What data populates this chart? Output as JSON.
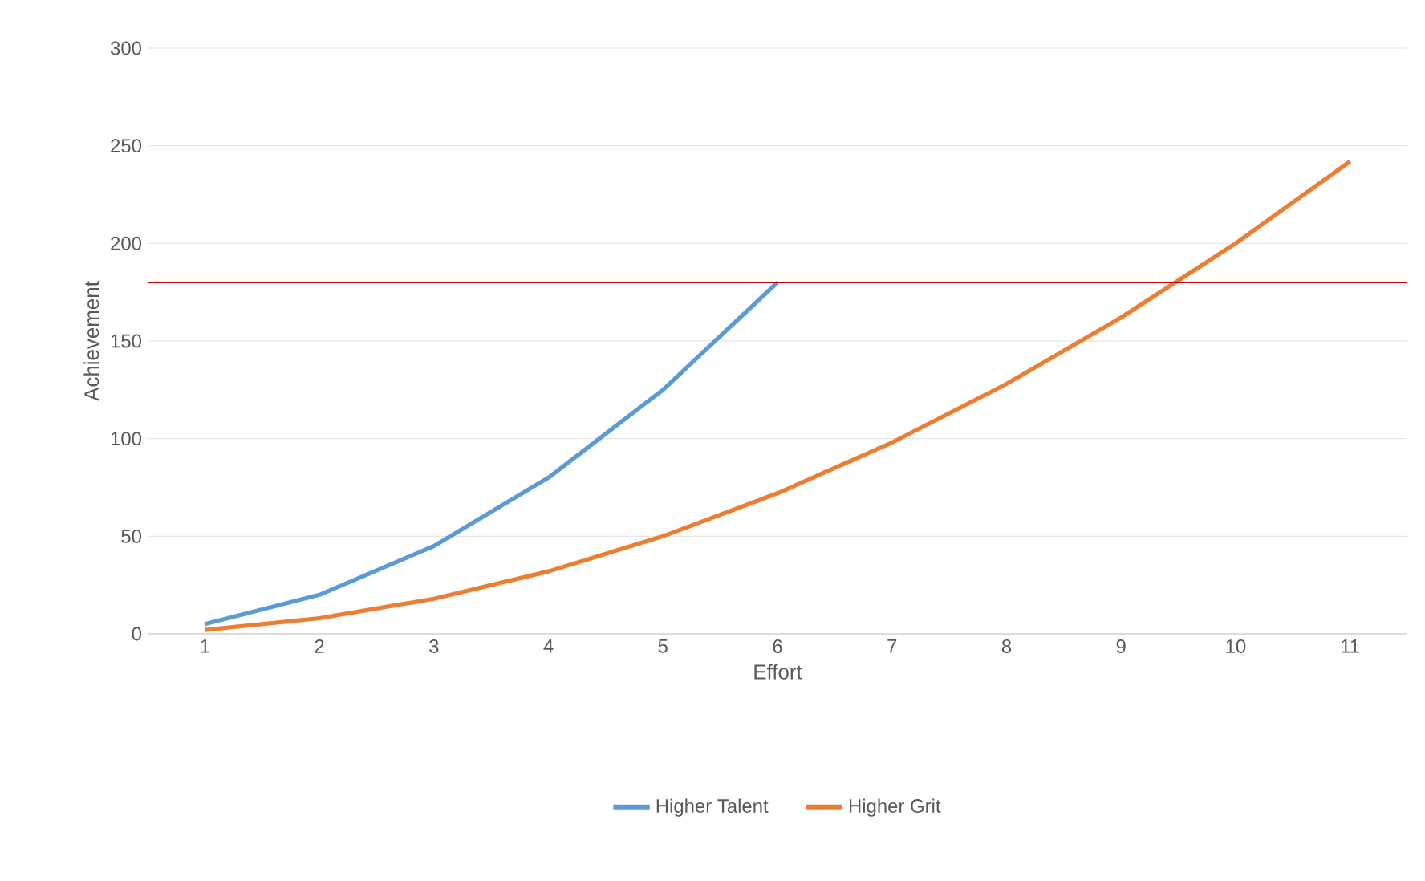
{
  "chart_data": {
    "type": "line",
    "xlabel": "Effort",
    "ylabel": "Achievement",
    "categories": [
      "1",
      "2",
      "3",
      "4",
      "5",
      "6",
      "7",
      "8",
      "9",
      "10",
      "11"
    ],
    "series": [
      {
        "name": "Higher Talent",
        "color": "#5b9bd5",
        "values": [
          5,
          20,
          45,
          80,
          125,
          180,
          null,
          null,
          null,
          null,
          null
        ]
      },
      {
        "name": "Higher Grit",
        "color": "#ed7d31",
        "values": [
          2,
          8,
          18,
          32,
          50,
          72,
          98,
          128,
          162,
          200,
          242
        ]
      }
    ],
    "ylim": [
      0,
      300
    ],
    "yticks": [
      0,
      50,
      100,
      150,
      200,
      250,
      300
    ],
    "grid": "y",
    "legend": "bottom",
    "marker": "none",
    "line_style": "solid",
    "ref_lines": [
      {
        "axis": "y",
        "value": 180,
        "color": "#c00000"
      }
    ]
  }
}
